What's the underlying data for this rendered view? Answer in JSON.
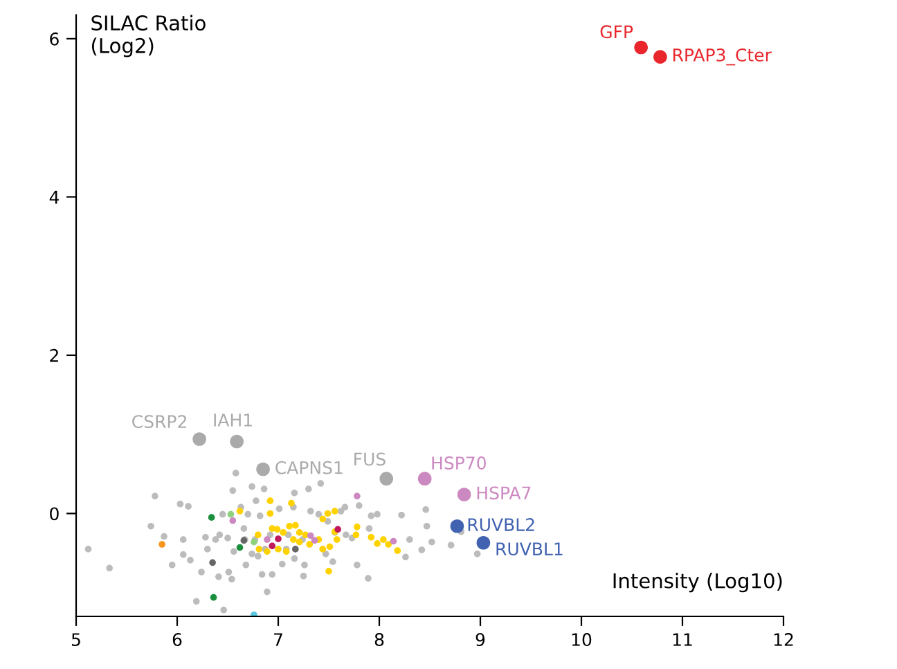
{
  "chart_data": {
    "type": "scatter",
    "xlabel": "Intensity (Log10)",
    "ylabel": "SILAC Ratio\n(Log2)",
    "xlim": [
      5,
      12
    ],
    "ylim": [
      -1.3,
      6.3
    ],
    "xticks": [
      5,
      6,
      7,
      8,
      9,
      10,
      11,
      12
    ],
    "yticks": [
      0,
      2,
      4,
      6
    ],
    "grid": false,
    "legend": false,
    "marker": "circle",
    "series": [
      {
        "color": "#bcbcbc",
        "x": [
          5.12,
          5.33,
          5.78,
          5.74,
          5.87,
          5.95,
          6.03,
          6.11,
          6.06,
          6.13,
          6.06,
          6.19,
          6.24,
          6.3,
          6.28,
          6.38,
          6.41,
          6.46,
          6.45,
          6.51,
          6.54,
          6.55,
          6.58,
          6.63,
          6.66,
          6.74,
          6.68,
          6.7,
          6.74,
          6.78,
          6.8,
          6.86,
          6.84,
          6.89,
          6.82,
          6.94,
          7.01,
          7.04,
          7.16,
          7.15,
          7.16,
          7.26,
          7.3,
          7.25,
          7.32,
          7.42,
          7.4,
          7.47,
          7.54,
          7.62,
          7.66,
          7.67,
          7.78,
          7.8,
          7.89,
          7.92,
          7.98,
          7.9,
          7.73,
          8.22,
          8.26,
          8.3,
          8.42,
          8.46,
          8.47,
          8.52,
          8.71,
          8.81,
          8.97,
          6.42,
          6.5,
          6.56,
          6.67,
          6.77,
          6.92,
          7.08,
          7.1,
          7.24,
          7.49,
          7.56,
          6.87
        ],
        "values": [
          -0.45,
          -0.69,
          0.22,
          -0.16,
          -0.29,
          -0.65,
          0.12,
          0.09,
          -0.33,
          -0.59,
          -0.52,
          -1.11,
          -0.74,
          -0.45,
          -0.3,
          -0.33,
          -0.8,
          -1.22,
          -0.01,
          -0.74,
          -0.83,
          0.29,
          0.51,
          0.08,
          -0.19,
          0.34,
          -0.65,
          -0.01,
          -0.51,
          0.16,
          -0.54,
          0.31,
          -0.77,
          -0.99,
          -0.03,
          -0.77,
          0.06,
          -0.64,
          0.26,
          0.08,
          -0.57,
          -0.65,
          0.31,
          -0.79,
          0.03,
          0.38,
          -0.01,
          -0.51,
          -0.61,
          0.03,
          0.08,
          -0.27,
          -0.65,
          0.1,
          -0.82,
          -0.03,
          -0.01,
          -0.19,
          -0.31,
          -0.02,
          -0.55,
          -0.33,
          -0.46,
          0.05,
          -0.16,
          -0.36,
          -0.4,
          -0.23,
          -0.51,
          -0.27,
          -0.31,
          -0.48,
          -0.33,
          -0.33,
          -0.27,
          -0.45,
          -0.27,
          -0.33,
          -0.1,
          -0.24,
          -0.45
        ]
      },
      {
        "color": "#ffd200",
        "x": [
          6.92,
          7.13,
          6.62,
          6.92,
          6.8,
          6.94,
          6.99,
          7.05,
          7.11,
          7.17,
          7.21,
          6.81,
          6.89,
          7.0,
          7.08,
          7.15,
          7.21,
          7.27,
          7.31,
          7.4,
          7.44,
          7.51,
          7.58,
          7.44,
          7.49,
          7.56,
          7.5,
          7.56,
          7.78,
          7.77,
          7.92,
          7.98,
          8.04,
          8.1,
          8.18,
          8.09
        ],
        "values": [
          0.16,
          0.13,
          0.03,
          0.0,
          -0.27,
          -0.19,
          -0.2,
          -0.24,
          -0.16,
          -0.15,
          -0.24,
          -0.45,
          -0.48,
          -0.45,
          -0.48,
          -0.33,
          -0.36,
          -0.27,
          -0.39,
          -0.33,
          -0.45,
          -0.42,
          -0.33,
          -0.07,
          0.0,
          0.03,
          -0.73,
          -0.23,
          -0.17,
          -0.27,
          -0.3,
          -0.38,
          -0.33,
          null,
          -0.47,
          -0.39
        ]
      },
      {
        "color": "#1a8f3c",
        "x": [
          6.34,
          6.62,
          6.36
        ],
        "values": [
          -0.05,
          -0.43,
          -1.06
        ]
      },
      {
        "color": "#8fd17f",
        "x": [
          6.53,
          6.76
        ],
        "values": [
          -0.01,
          -0.36
        ]
      },
      {
        "color": "#666666",
        "x": [
          6.35,
          6.66,
          7.17
        ],
        "values": [
          -0.62,
          -0.34,
          -0.45
        ]
      },
      {
        "color": "#cc88c0",
        "x": [
          6.55,
          6.89,
          7.32,
          7.36,
          7.78,
          8.14
        ],
        "values": [
          -0.09,
          -0.33,
          -0.28,
          -0.34,
          0.22,
          -0.35
        ]
      },
      {
        "color": "#c0185c",
        "x": [
          6.94,
          7.0,
          7.59
        ],
        "values": [
          -0.41,
          -0.32,
          -0.2
        ]
      },
      {
        "color": "#f7941d",
        "x": [
          5.85
        ],
        "values": [
          -0.39
        ]
      },
      {
        "color": "#5bc8e0",
        "x": [
          6.76
        ],
        "values": [
          -1.28
        ]
      },
      {
        "name": "GFP",
        "color": "#e8262b",
        "x": [
          10.59
        ],
        "values": [
          5.89
        ]
      },
      {
        "name": "RPAP3_Cter",
        "color": "#e8262b",
        "x": [
          10.78
        ],
        "values": [
          5.77
        ]
      },
      {
        "name": "CSRP2",
        "color": "#aaaaaa",
        "x": [
          6.22
        ],
        "values": [
          0.94
        ]
      },
      {
        "name": "IAH1",
        "color": "#aaaaaa",
        "x": [
          6.59
        ],
        "values": [
          0.91
        ]
      },
      {
        "name": "CAPNS1",
        "color": "#aaaaaa",
        "x": [
          6.85
        ],
        "values": [
          0.56
        ]
      },
      {
        "name": "FUS",
        "color": "#aaaaaa",
        "x": [
          8.07
        ],
        "values": [
          0.44
        ]
      },
      {
        "name": "HSP70",
        "color": "#cc88c0",
        "x": [
          8.45
        ],
        "values": [
          0.44
        ]
      },
      {
        "name": "HSPA7",
        "color": "#cc88c0",
        "x": [
          8.84
        ],
        "values": [
          0.24
        ]
      },
      {
        "name": "RUVBL2",
        "color": "#4062b0",
        "x": [
          8.77
        ],
        "values": [
          -0.16
        ]
      },
      {
        "name": "RUVBL1",
        "color": "#4062b0",
        "x": [
          9.03
        ],
        "values": [
          -0.37
        ]
      }
    ]
  }
}
